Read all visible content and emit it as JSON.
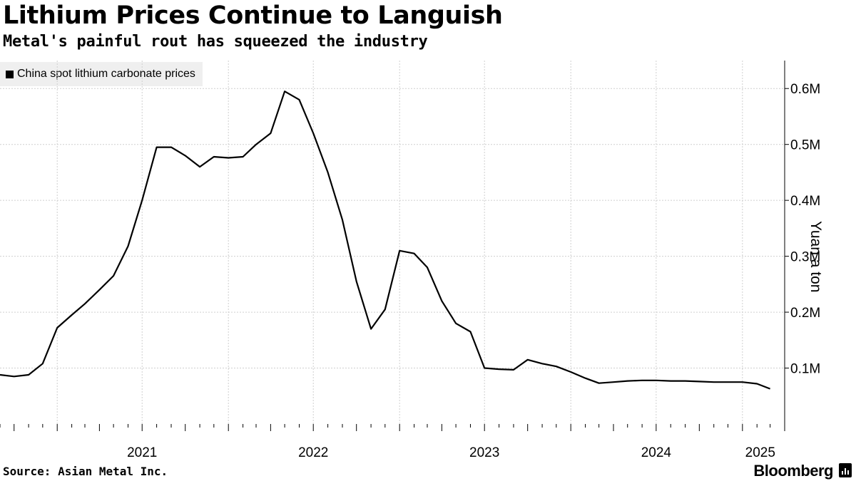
{
  "header": {
    "title": "Lithium Prices Continue to Languish",
    "subtitle": "Metal's painful rout has squeezed the industry"
  },
  "footer": {
    "source": "Source: Asian Metal Inc.",
    "brand": "Bloomberg"
  },
  "colors": {
    "line": "#000000",
    "grid": "#cfcfcf",
    "legend_bg": "#efefef"
  },
  "chart_data": {
    "type": "line",
    "title": "Lithium Prices Continue to Languish",
    "subtitle": "Metal's painful rout has squeezed the industry",
    "xlabel": "",
    "ylabel": "Yuan a ton",
    "legend": [
      "China spot lithium carbonate prices"
    ],
    "legend_position": "top-left",
    "x_range": [
      "2020-09-01",
      "2025-04-01"
    ],
    "ylim": [
      0,
      650000
    ],
    "y_ticks": [
      100000,
      200000,
      300000,
      400000,
      500000,
      600000
    ],
    "y_tick_labels": [
      "0.1M",
      "0.2M",
      "0.3M",
      "0.4M",
      "0.5M",
      "0.6M"
    ],
    "x_year_labels": [
      {
        "label": "2021",
        "date": "2021-01-01"
      },
      {
        "label": "2022",
        "date": "2022-01-01"
      },
      {
        "label": "2023",
        "date": "2023-01-01"
      },
      {
        "label": "2024",
        "date": "2024-01-01"
      },
      {
        "label": "2025",
        "date": "2025-01-01"
      }
    ],
    "grid": true,
    "series": [
      {
        "name": "China spot lithium carbonate prices",
        "points": [
          [
            "2020-09-01",
            88000
          ],
          [
            "2020-10-01",
            85000
          ],
          [
            "2020-11-01",
            88000
          ],
          [
            "2020-12-01",
            108000
          ],
          [
            "2021-01-01",
            172000
          ],
          [
            "2021-02-01",
            195000
          ],
          [
            "2021-03-01",
            215000
          ],
          [
            "2021-04-01",
            240000
          ],
          [
            "2021-05-01",
            265000
          ],
          [
            "2021-06-01",
            318000
          ],
          [
            "2021-07-01",
            400000
          ],
          [
            "2021-08-01",
            495000
          ],
          [
            "2021-09-01",
            495000
          ],
          [
            "2021-10-01",
            480000
          ],
          [
            "2021-11-01",
            460000
          ],
          [
            "2021-12-01",
            478000
          ],
          [
            "2022-01-01",
            476000
          ],
          [
            "2022-02-01",
            478000
          ],
          [
            "2022-03-01",
            500000
          ],
          [
            "2022-04-01",
            520000
          ],
          [
            "2022-05-01",
            595000
          ],
          [
            "2022-06-01",
            580000
          ],
          [
            "2022-07-01",
            520000
          ],
          [
            "2022-08-01",
            450000
          ],
          [
            "2022-09-01",
            365000
          ],
          [
            "2022-10-01",
            255000
          ],
          [
            "2022-11-01",
            170000
          ],
          [
            "2022-12-01",
            205000
          ],
          [
            "2023-01-01",
            310000
          ],
          [
            "2023-02-01",
            305000
          ],
          [
            "2023-03-01",
            280000
          ],
          [
            "2023-04-01",
            220000
          ],
          [
            "2023-05-01",
            180000
          ],
          [
            "2023-06-01",
            165000
          ],
          [
            "2023-07-01",
            100000
          ],
          [
            "2023-08-01",
            98000
          ],
          [
            "2023-09-01",
            97000
          ],
          [
            "2023-10-01",
            115000
          ],
          [
            "2023-11-01",
            108000
          ],
          [
            "2023-12-01",
            103000
          ],
          [
            "2024-01-01",
            93000
          ],
          [
            "2024-02-01",
            82000
          ],
          [
            "2024-03-01",
            73000
          ],
          [
            "2024-04-01",
            75000
          ],
          [
            "2024-05-01",
            77000
          ],
          [
            "2024-06-01",
            78000
          ],
          [
            "2024-07-01",
            78000
          ],
          [
            "2024-08-01",
            77000
          ],
          [
            "2024-09-01",
            77000
          ],
          [
            "2024-10-01",
            76000
          ],
          [
            "2024-11-01",
            75000
          ],
          [
            "2024-12-01",
            75000
          ],
          [
            "2025-01-01",
            75000
          ],
          [
            "2025-02-01",
            72000
          ],
          [
            "2025-03-01",
            63000
          ]
        ]
      }
    ]
  }
}
